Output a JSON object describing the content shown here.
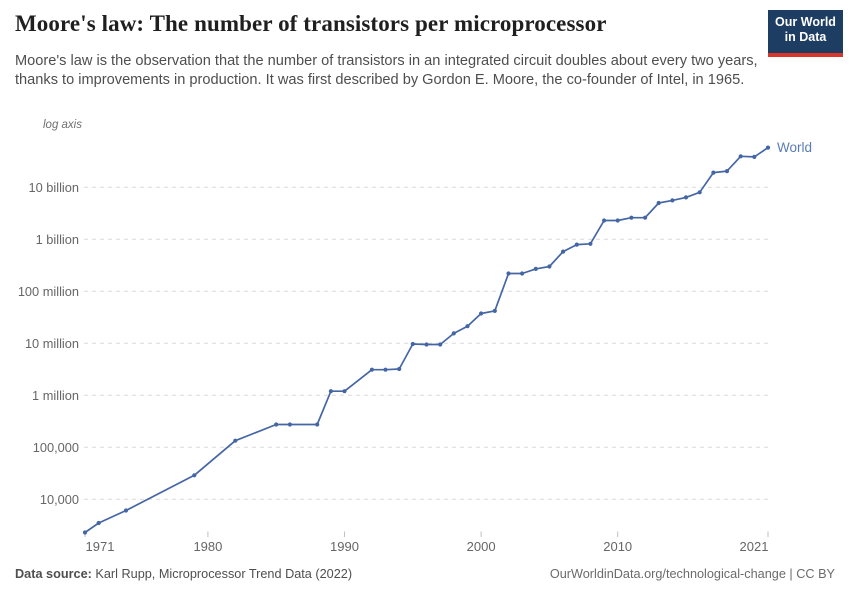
{
  "header": {
    "title": "Moore's law: The number of transistors per microprocessor",
    "subtitle": "Moore's law is the observation that the number of transistors in an integrated circuit doubles about every two years, thanks to improvements in production. It was first described by Gordon E. Moore, the co-founder of Intel, in 1965.",
    "logo": {
      "line1": "Our World",
      "line2": "in Data",
      "bg_color": "#1d3d63",
      "accent_color": "#d8352b"
    }
  },
  "chart_data": {
    "type": "line",
    "title": "Moore's law: The number of transistors per microprocessor",
    "y_scale": "log",
    "y_axis_note": "log axis",
    "grid": "dashed-horizontal",
    "xlim": [
      1971,
      2021
    ],
    "ylim": [
      2000,
      100000000000
    ],
    "x_ticks": [
      {
        "year": 1971,
        "label": "1971",
        "dx": 15
      },
      {
        "year": 1980,
        "label": "1980",
        "dx": 0
      },
      {
        "year": 1990,
        "label": "1990",
        "dx": 0
      },
      {
        "year": 2000,
        "label": "2000",
        "dx": 0
      },
      {
        "year": 2010,
        "label": "2010",
        "dx": 0
      },
      {
        "year": 2021,
        "label": "2021",
        "dx": -14
      }
    ],
    "y_ticks": [
      {
        "value": 10000000000,
        "label": "10 billion"
      },
      {
        "value": 1000000000,
        "label": "1 billion"
      },
      {
        "value": 100000000,
        "label": "100 million"
      },
      {
        "value": 10000000,
        "label": "10 million"
      },
      {
        "value": 1000000,
        "label": "1 million"
      },
      {
        "value": 100000,
        "label": "100,000"
      },
      {
        "value": 10000,
        "label": "10,000"
      }
    ],
    "series": [
      {
        "name": "World",
        "color": "#4566a5",
        "label_color": "#5b7db5",
        "years": [
          1971,
          1972,
          1974,
          1979,
          1982,
          1985,
          1986,
          1988,
          1989,
          1990,
          1992,
          1993,
          1994,
          1995,
          1996,
          1997,
          1998,
          1999,
          2000,
          2001,
          2002,
          2003,
          2004,
          2005,
          2006,
          2007,
          2008,
          2009,
          2010,
          2011,
          2012,
          2013,
          2014,
          2015,
          2016,
          2017,
          2018,
          2019,
          2020,
          2021
        ],
        "values": [
          2300,
          3500,
          6100,
          29000,
          134000,
          275000,
          275000,
          275000,
          1200000,
          1200000,
          3100000,
          3100000,
          3200000,
          9700000,
          9500000,
          9500000,
          15500000,
          21300000,
          37500000,
          42000000,
          220000000,
          220000000,
          270000000,
          300000000,
          580000000,
          790000000,
          820000000,
          2300000000,
          2300000000,
          2600000000,
          2600000000,
          5000000000,
          5600000000,
          6400000000,
          8000000000,
          19200000000,
          20500000000,
          39500000000,
          38500000000,
          58000000000
        ]
      }
    ]
  },
  "footer": {
    "datasource_label": "Data source:",
    "datasource_text": " Karl Rupp, Microprocessor Trend Data (2022)",
    "attribution": "OurWorldinData.org/technological-change | CC BY"
  }
}
